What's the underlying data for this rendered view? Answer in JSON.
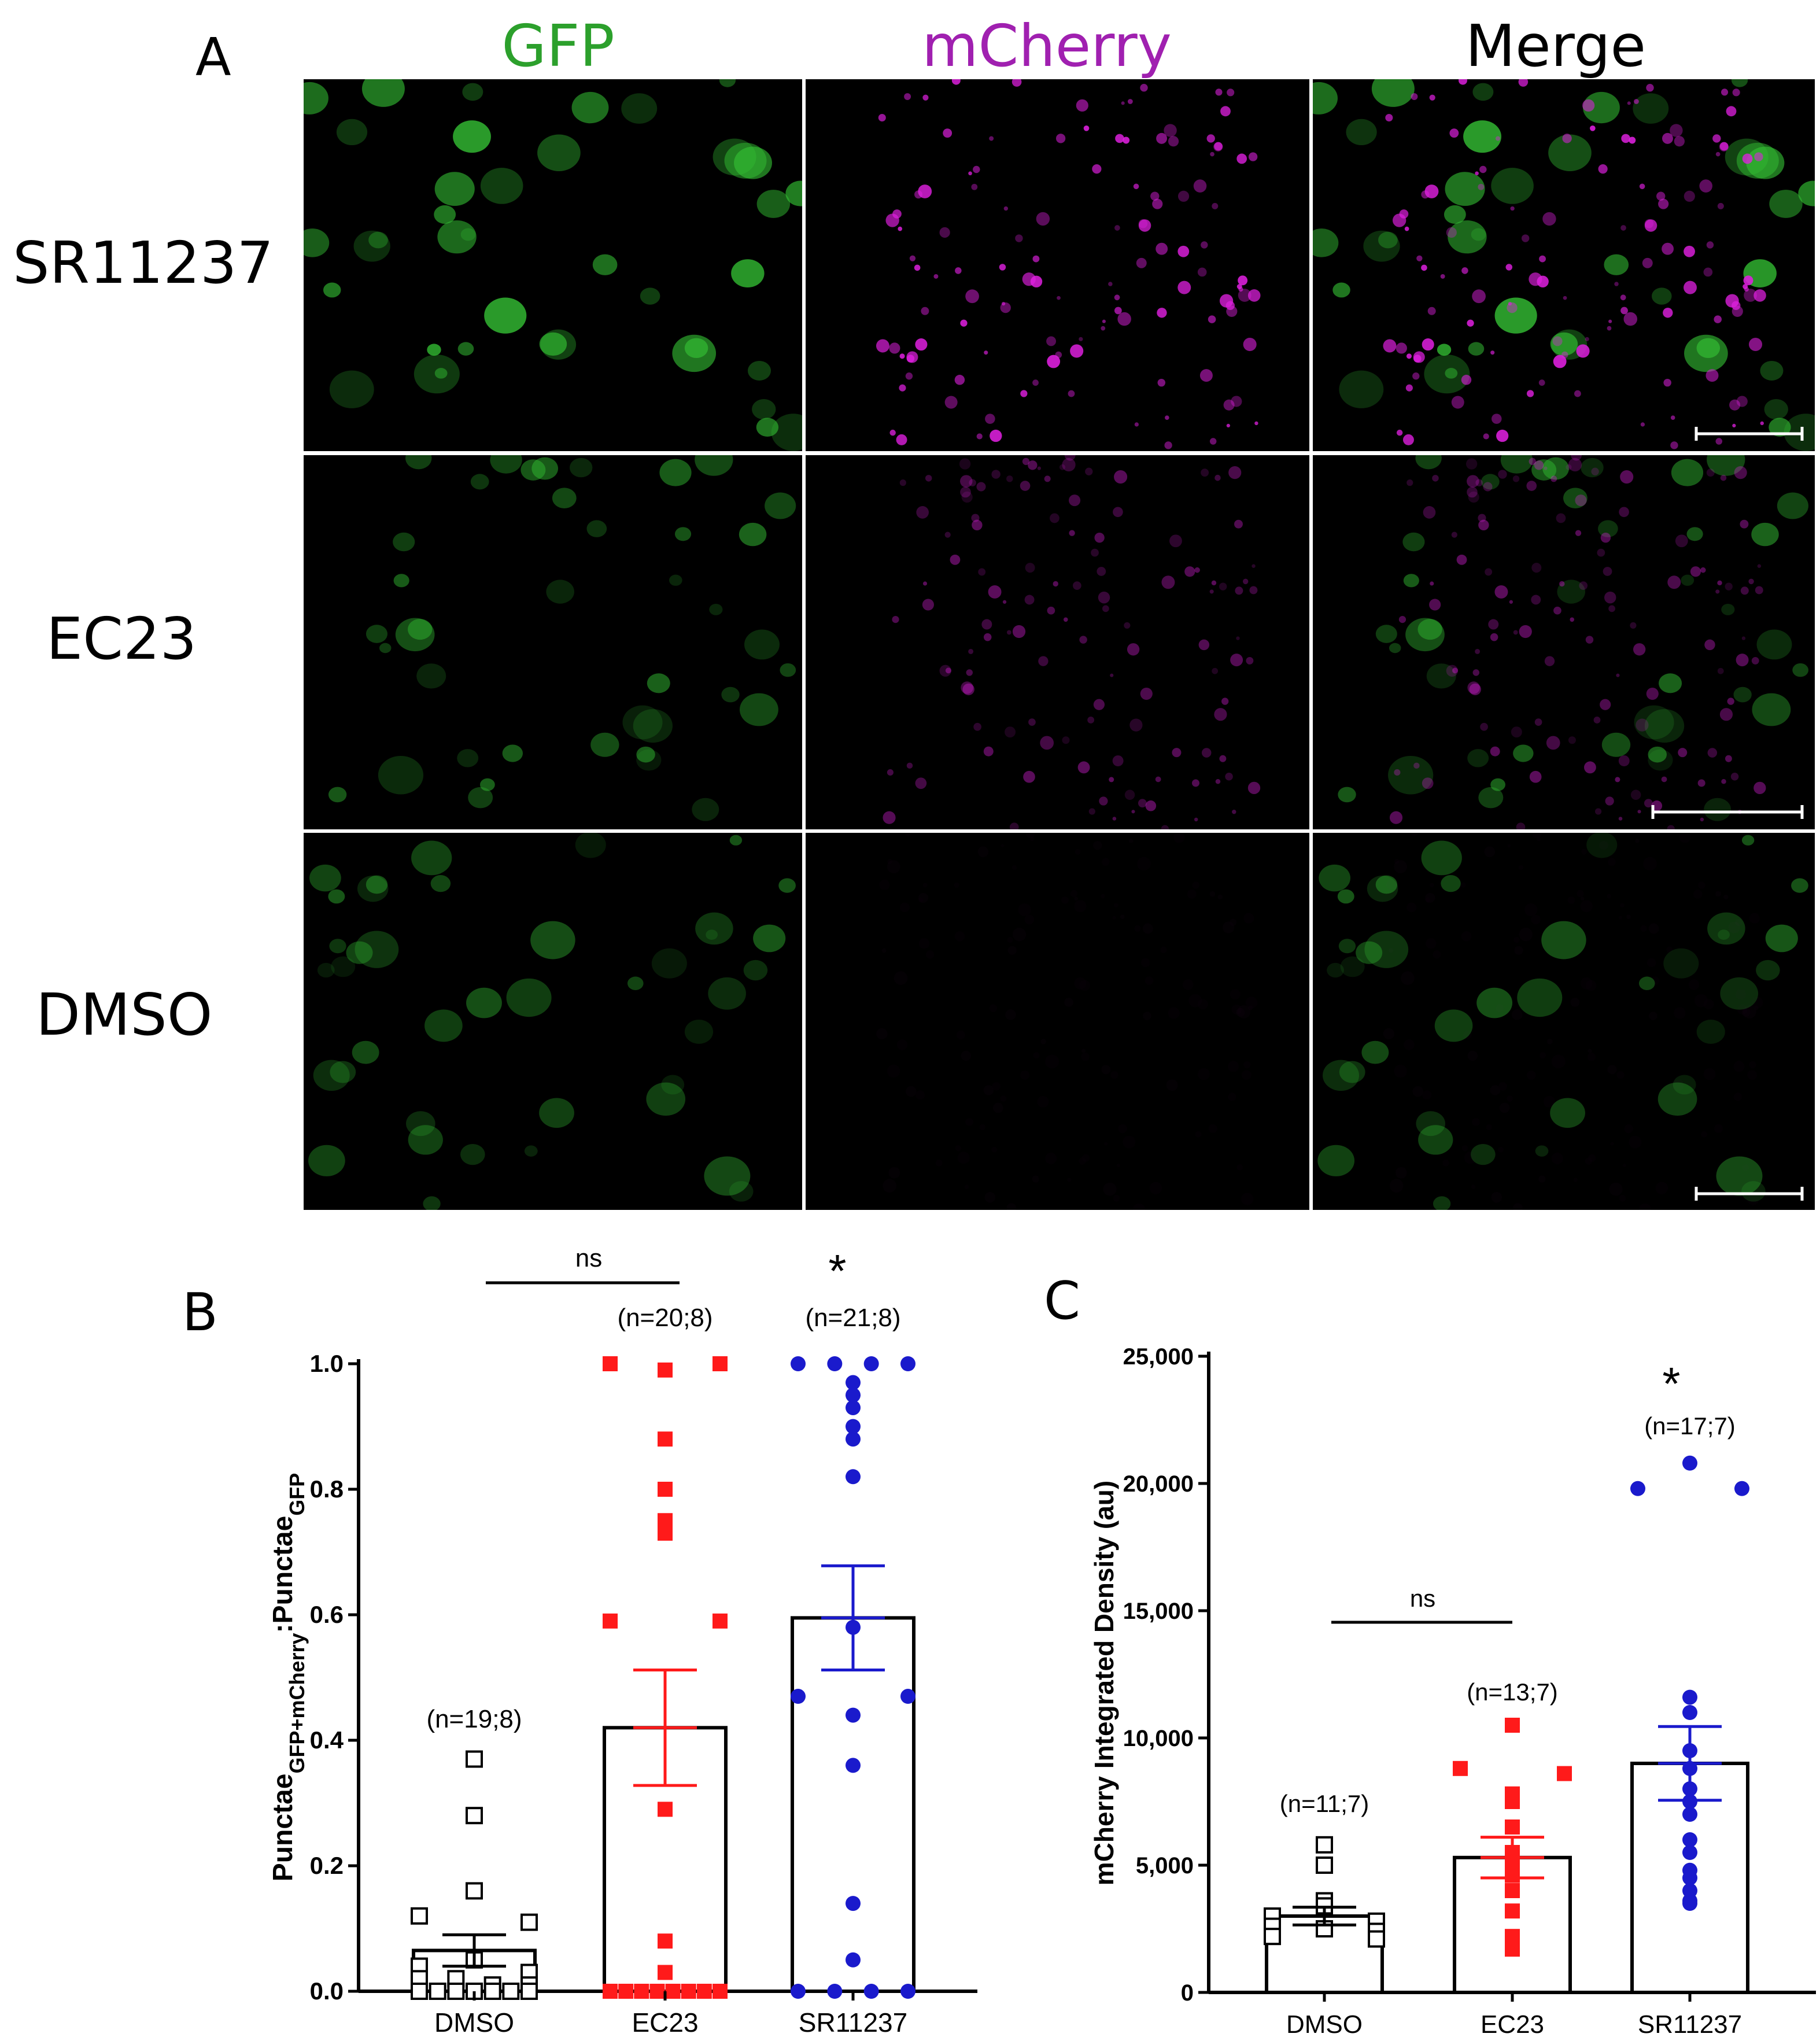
{
  "panel_a": {
    "letter": "A",
    "columns": [
      {
        "label": "GFP",
        "color": "#2ca02c"
      },
      {
        "label": "mCherry",
        "color": "#a020b0"
      },
      {
        "label": "Merge",
        "color": "#000000"
      }
    ],
    "rows": [
      {
        "label": "SR11237",
        "gfp_intensity": 1.0,
        "mcherry_intensity": 1.0
      },
      {
        "label": "EC23",
        "gfp_intensity": 0.65,
        "mcherry_intensity": 0.45
      },
      {
        "label": "DMSO",
        "gfp_intensity": 0.55,
        "mcherry_intensity": 0.02
      }
    ],
    "gfp_color": "#35c435",
    "mcherry_color": "#e020e0"
  },
  "panel_b": {
    "letter": "B",
    "significance_star": "*",
    "ns_label": "ns",
    "ns_bracket_label_text": "ns"
  },
  "panel_c": {
    "letter": "C",
    "significance_star": "*",
    "ns_label": "ns"
  },
  "chart_data": [
    {
      "type": "scatter",
      "subtype": "bar_with_points_mean_sem",
      "ylabel_main": "Punctae",
      "ylabel_sub1": "GFP+mCherry",
      "ylabel_sep": ":",
      "ylabel_main2": "Punctae",
      "ylabel_sub2": "GFP",
      "ylim": [
        0,
        1.0
      ],
      "yticks": [
        "0.0",
        "0.2",
        "0.4",
        "0.6",
        "0.8",
        "1.0"
      ],
      "ytick_values": [
        0,
        0.2,
        0.4,
        0.6,
        0.8,
        1.0
      ],
      "categories": [
        "DMSO",
        "EC23",
        "SR11237"
      ],
      "n_labels": [
        "(n=19;8)",
        "(n=20;8)",
        "(n=21;8)"
      ],
      "series": [
        {
          "name": "DMSO",
          "marker": "open-square",
          "color": "#000000",
          "mean": 0.065,
          "sem": 0.025,
          "points": [
            0.37,
            0.28,
            0.16,
            0.12,
            0.11,
            0.05,
            0.04,
            0.03,
            0.02,
            0.02,
            0.01,
            0.01,
            0,
            0,
            0,
            0,
            0,
            0,
            0
          ]
        },
        {
          "name": "EC23",
          "marker": "filled-square",
          "color": "#ff1a1a",
          "mean": 0.42,
          "sem": 0.092,
          "points": [
            1.0,
            1.0,
            0.99,
            0.88,
            0.8,
            0.75,
            0.73,
            0.59,
            0.59,
            0.29,
            0.08,
            0.03,
            0,
            0,
            0,
            0,
            0,
            0,
            0,
            0
          ]
        },
        {
          "name": "SR11237",
          "marker": "filled-circle",
          "color": "#1a1acc",
          "mean": 0.595,
          "sem": 0.083,
          "points": [
            1.0,
            1.0,
            1.0,
            1.0,
            0.97,
            0.95,
            0.93,
            0.9,
            0.88,
            0.82,
            0.58,
            0.47,
            0.47,
            0.44,
            0.36,
            0.14,
            0.05,
            0,
            0,
            0,
            0
          ]
        }
      ]
    },
    {
      "type": "scatter",
      "subtype": "bar_with_points_mean_sem",
      "ylabel": "mCherry Integrated Density (au)",
      "ylim": [
        0,
        25000
      ],
      "yticks": [
        "0",
        "5,000",
        "10,000",
        "15,000",
        "20,000",
        "25,000"
      ],
      "ytick_values": [
        0,
        5000,
        10000,
        15000,
        20000,
        25000
      ],
      "categories": [
        "DMSO",
        "EC23",
        "SR11237"
      ],
      "n_labels": [
        "(n=11;7)",
        "(n=13;7)",
        "(n=17;7)"
      ],
      "series": [
        {
          "name": "DMSO",
          "marker": "open-square",
          "color": "#000000",
          "mean": 3000,
          "sem": 350,
          "points": [
            5800,
            5000,
            3600,
            3400,
            3000,
            2800,
            2600,
            2500,
            2400,
            2200,
            2100
          ]
        },
        {
          "name": "EC23",
          "marker": "filled-square",
          "color": "#ff1a1a",
          "mean": 5300,
          "sem": 800,
          "points": [
            10500,
            8800,
            8600,
            7800,
            7500,
            6500,
            5500,
            5000,
            4600,
            4000,
            3200,
            2200,
            1700
          ]
        },
        {
          "name": "SR11237",
          "marker": "filled-circle",
          "color": "#1a1acc",
          "mean": 9000,
          "sem": 1450,
          "points": [
            20800,
            19800,
            19800,
            11600,
            11000,
            9500,
            8800,
            8000,
            7500,
            7000,
            6000,
            5500,
            4800,
            4500,
            4000,
            3600,
            3500
          ]
        }
      ]
    }
  ]
}
